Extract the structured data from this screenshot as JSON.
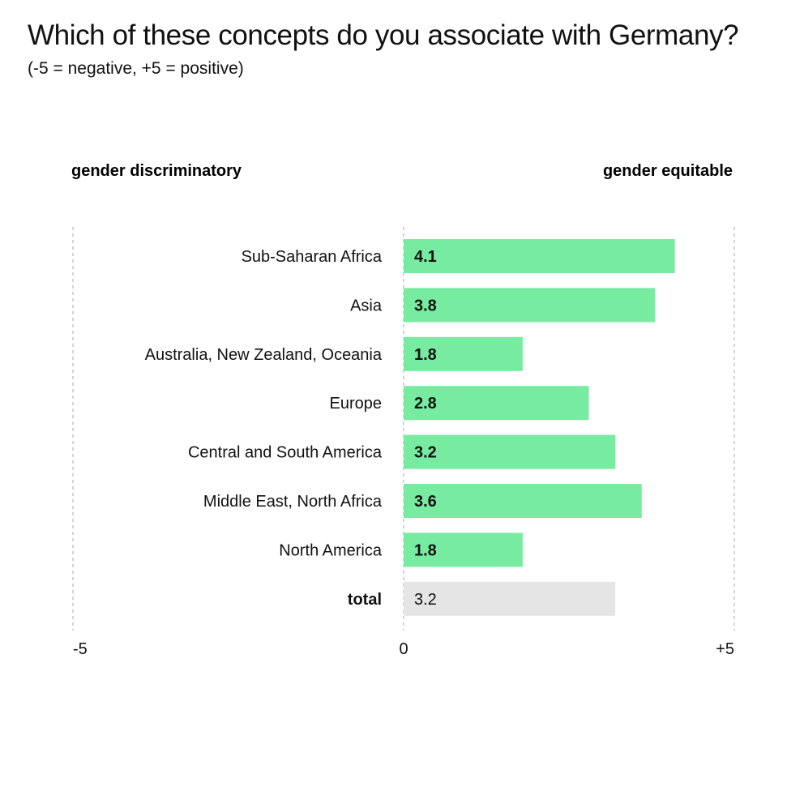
{
  "title": "Which of these concepts do you associate with Germany?",
  "subtitle": "(-5 = negative, +5 = positive)",
  "scale_labels": {
    "left": "gender discriminatory",
    "right": "gender equitable"
  },
  "colors": {
    "bar": "#77eb9f",
    "total_bar": "#e5e5e5",
    "gridline": "#aaaaaa",
    "text": "#111111"
  },
  "chart_data": {
    "type": "bar",
    "orientation": "horizontal",
    "categories": [
      "Sub-Saharan Africa",
      "Asia",
      "Australia, New Zealand, Oceania",
      "Europe",
      "Central and South America",
      "Middle East, North Africa",
      "North America",
      "total"
    ],
    "values": [
      4.1,
      3.8,
      1.8,
      2.8,
      3.2,
      3.6,
      1.8,
      3.2
    ],
    "value_labels": [
      "4.1",
      "3.8",
      "1.8",
      "2.8",
      "3.2",
      "3.6",
      "1.8",
      "3.2"
    ],
    "highlight_category": "total",
    "xlim": [
      -5,
      5
    ],
    "x_ticks": [
      -5,
      0,
      5
    ],
    "x_tick_labels": [
      "-5",
      "0",
      "+5"
    ],
    "grid": "dashed vertical lines at -5, 0 and +5",
    "legend": "none"
  }
}
